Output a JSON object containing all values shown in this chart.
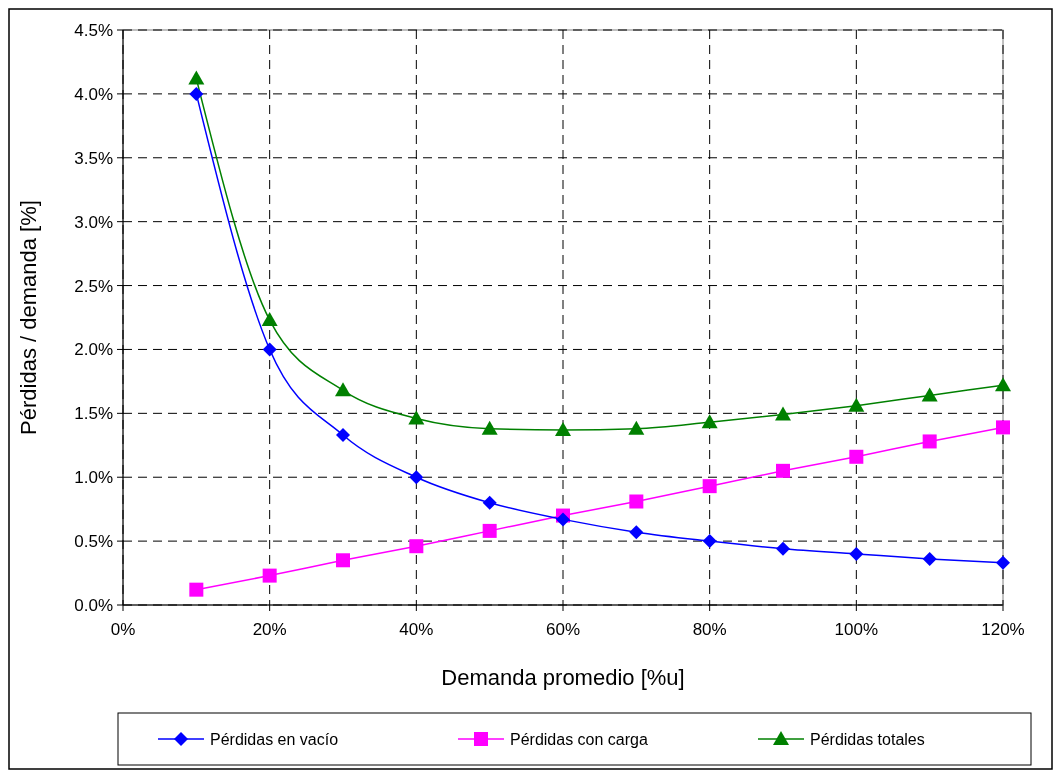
{
  "chart_data": {
    "type": "line",
    "xlabel": "Demanda promedio [%u]",
    "ylabel": "Pérdidas / demanda [%]",
    "x": [
      10,
      20,
      30,
      40,
      50,
      60,
      70,
      80,
      90,
      100,
      110,
      120
    ],
    "xlim": [
      0,
      120
    ],
    "xticks": [
      {
        "value": 0,
        "label": "0%"
      },
      {
        "value": 20,
        "label": "20%"
      },
      {
        "value": 40,
        "label": "40%"
      },
      {
        "value": 60,
        "label": "60%"
      },
      {
        "value": 80,
        "label": "80%"
      },
      {
        "value": 100,
        "label": "100%"
      },
      {
        "value": 120,
        "label": "120%"
      }
    ],
    "ylim": [
      0,
      4.5
    ],
    "yticks": [
      {
        "value": 0,
        "label": "0.0%"
      },
      {
        "value": 0.5,
        "label": "0.5%"
      },
      {
        "value": 1,
        "label": "1.0%"
      },
      {
        "value": 1.5,
        "label": "1.5%"
      },
      {
        "value": 2,
        "label": "2.0%"
      },
      {
        "value": 2.5,
        "label": "2.5%"
      },
      {
        "value": 3,
        "label": "3.0%"
      },
      {
        "value": 3.5,
        "label": "3.5%"
      },
      {
        "value": 4,
        "label": "4.0%"
      },
      {
        "value": 4.5,
        "label": "4.5%"
      }
    ],
    "grid": true,
    "legend": "bottom",
    "series": [
      {
        "name": "Pérdidas en vacío",
        "color": "#0000ff",
        "marker": "diamond",
        "values": [
          4.0,
          2.0,
          1.33,
          1.0,
          0.8,
          0.67,
          0.57,
          0.5,
          0.44,
          0.4,
          0.36,
          0.33
        ]
      },
      {
        "name": "Pérdidas con carga",
        "color": "#ff00ff",
        "marker": "square",
        "values": [
          0.12,
          0.23,
          0.35,
          0.46,
          0.58,
          0.7,
          0.81,
          0.93,
          1.05,
          1.16,
          1.28,
          1.39
        ]
      },
      {
        "name": "Pérdidas totales",
        "color": "#008000",
        "marker": "triangle",
        "values": [
          4.12,
          2.23,
          1.68,
          1.46,
          1.38,
          1.37,
          1.38,
          1.43,
          1.49,
          1.56,
          1.64,
          1.72
        ]
      }
    ]
  }
}
